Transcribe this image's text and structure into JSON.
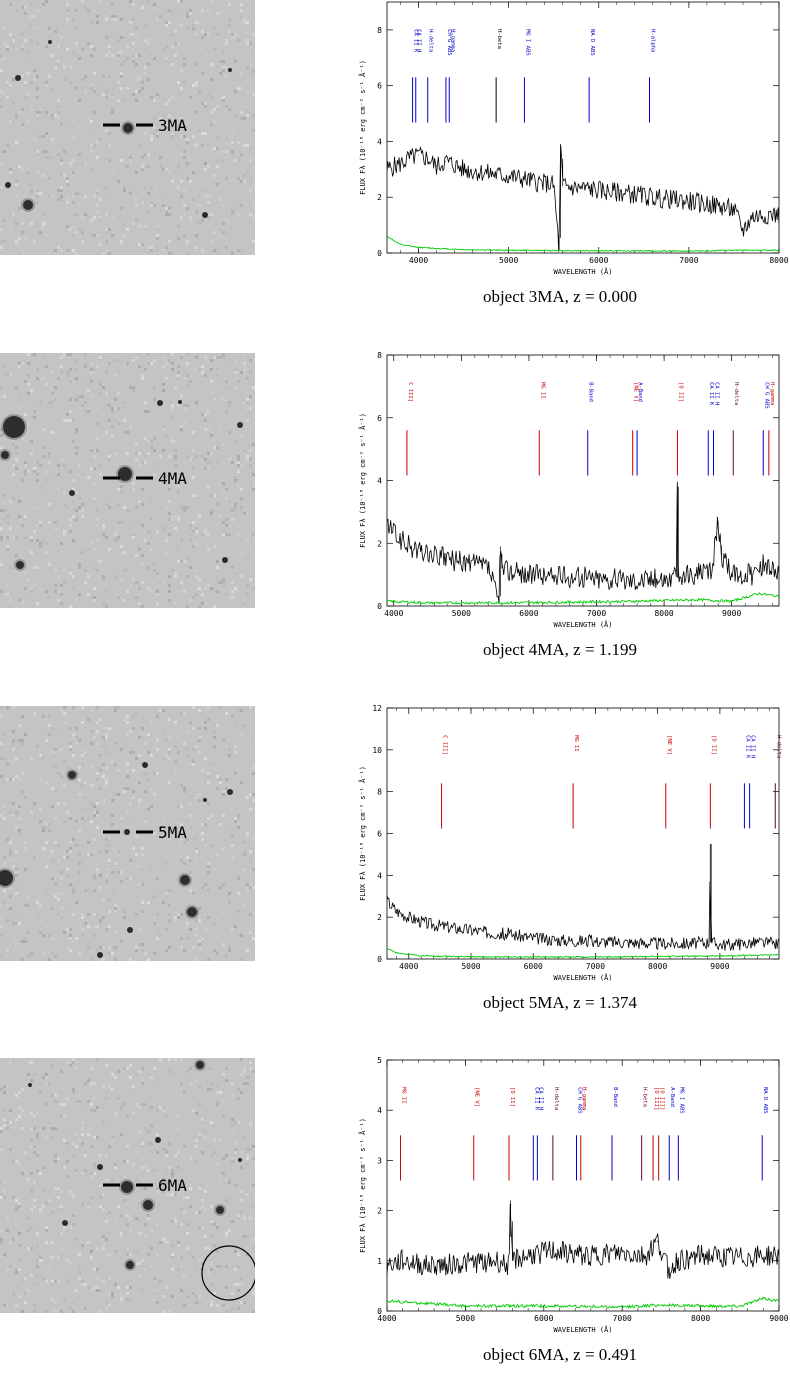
{
  "panels": [
    {
      "id": "3MA",
      "stamp": {
        "label": "3MA",
        "extra_marker": false
      },
      "caption": {
        "prefix": "object",
        "name": "3MA",
        "redshift": "z = 0.000"
      },
      "chart_data": {
        "type": "line",
        "xlabel": "WAVELENGTH (Å)",
        "ylabel": "FLUX Fλ (10⁻¹⁸ erg cm⁻² s⁻¹ Å⁻¹)",
        "xlim": [
          3650,
          8000
        ],
        "ylim": [
          0,
          9
        ],
        "xticks": [
          4000,
          5000,
          6000,
          7000,
          8000
        ],
        "yticks": [
          0,
          2,
          4,
          6,
          8
        ],
        "series": [
          {
            "color": "#000000",
            "x": [
              3650,
              3800,
              3900,
              4000,
              4100,
              4200,
              4300,
              4500,
              4700,
              4900,
              5100,
              5300,
              5500,
              5560,
              5577,
              5600,
              5700,
              5900,
              6100,
              6300,
              6500,
              6700,
              6900,
              7100,
              7300,
              7500,
              7600,
              7700,
              7900,
              8000
            ],
            "y": [
              3.0,
              3.2,
              3.4,
              3.5,
              3.4,
              3.1,
              3.3,
              3.0,
              2.9,
              2.8,
              2.7,
              2.55,
              2.45,
              0.1,
              3.9,
              2.4,
              2.35,
              2.3,
              2.2,
              2.15,
              2.05,
              1.95,
              1.9,
              1.8,
              1.7,
              1.55,
              0.8,
              1.3,
              1.4,
              1.35
            ],
            "noise": 0.35
          },
          {
            "color": "#00cc00",
            "x": [
              3650,
              3800,
              4000,
              4500,
              5000,
              6000,
              7000,
              7600,
              8000
            ],
            "y": [
              0.6,
              0.3,
              0.2,
              0.12,
              0.1,
              0.08,
              0.07,
              0.1,
              0.1
            ],
            "noise": 0.02
          }
        ],
        "lines": [
          {
            "label": "CA II K",
            "x": 3934,
            "color": "#0000cc"
          },
          {
            "label": "CA II H",
            "x": 3969,
            "color": "#0000cc"
          },
          {
            "label": "H-delta",
            "x": 4102,
            "color": "#0000cc"
          },
          {
            "label": "CH G ABS",
            "x": 4304,
            "color": "#0000cc"
          },
          {
            "label": "H-gamma",
            "x": 4341,
            "color": "#0000cc"
          },
          {
            "label": "H-beta",
            "x": 4861,
            "color": "#000000"
          },
          {
            "label": "MG I ABS",
            "x": 5175,
            "color": "#0000cc"
          },
          {
            "label": "NA D ABS",
            "x": 5893,
            "color": "#0000cc"
          },
          {
            "label": "H-alpha",
            "x": 6563,
            "color": "#0000cc"
          }
        ]
      }
    },
    {
      "id": "4MA",
      "stamp": {
        "label": "4MA",
        "extra_marker": false
      },
      "caption": {
        "prefix": "object",
        "name": "4MA",
        "redshift": "z = 1.199"
      },
      "chart_data": {
        "type": "line",
        "xlabel": "WAVELENGTH (Å)",
        "ylabel": "FLUX Fλ (10⁻¹⁸ erg cm⁻² s⁻¹ Å⁻¹)",
        "xlim": [
          3900,
          9700
        ],
        "ylim": [
          0,
          8
        ],
        "xticks": [
          4000,
          5000,
          6000,
          7000,
          8000,
          9000
        ],
        "yticks": [
          0,
          2,
          4,
          6,
          8
        ],
        "series": [
          {
            "color": "#000000",
            "x": [
              3900,
              4100,
              4300,
              4600,
              5000,
              5400,
              5560,
              5577,
              5600,
              6000,
              6500,
              7000,
              7500,
              8000,
              8180,
              8195,
              8210,
              8400,
              8700,
              8800,
              8850,
              9000,
              9300,
              9500,
              9700
            ],
            "y": [
              2.6,
              2.1,
              1.8,
              1.6,
              1.4,
              1.25,
              0.1,
              1.9,
              1.2,
              1.0,
              0.95,
              0.9,
              0.85,
              0.9,
              0.9,
              3.8,
              0.9,
              1.0,
              1.1,
              2.7,
              1.6,
              1.0,
              1.0,
              1.4,
              1.0
            ],
            "noise": 0.35
          },
          {
            "color": "#00cc00",
            "x": [
              3900,
              4500,
              5500,
              6500,
              7500,
              8500,
              9000,
              9400,
              9700
            ],
            "y": [
              0.15,
              0.1,
              0.1,
              0.12,
              0.15,
              0.2,
              0.15,
              0.4,
              0.3
            ],
            "noise": 0.04
          }
        ],
        "lines": [
          {
            "label": "C III]",
            "x": 4195,
            "color": "#cc0000"
          },
          {
            "label": "MG II",
            "x": 6153,
            "color": "#cc0000"
          },
          {
            "label": "B-Band",
            "x": 6870,
            "color": "#0000cc"
          },
          {
            "label": "[NE V]",
            "x": 7535,
            "color": "#cc0000"
          },
          {
            "label": "A-Band",
            "x": 7600,
            "color": "#0000cc"
          },
          {
            "label": "[O II]",
            "x": 8197,
            "color": "#cc0000"
          },
          {
            "label": "CA II K",
            "x": 8653,
            "color": "#0000cc"
          },
          {
            "label": "CA II H",
            "x": 8731,
            "color": "#0000cc"
          },
          {
            "label": "H-delta",
            "x": 9023,
            "color": "#660033"
          },
          {
            "label": "CH G ABS",
            "x": 9467,
            "color": "#0000cc"
          },
          {
            "label": "H-gamma",
            "x": 9550,
            "color": "#cc0000"
          }
        ]
      }
    },
    {
      "id": "5MA",
      "stamp": {
        "label": "5MA",
        "extra_marker": false
      },
      "caption": {
        "prefix": "object",
        "name": "5MA",
        "redshift": "z = 1.374"
      },
      "chart_data": {
        "type": "line",
        "xlabel": "WAVELENGTH (Å)",
        "ylabel": "FLUX Fλ (10⁻¹⁸ erg cm⁻² s⁻¹ Å⁻¹)",
        "xlim": [
          3650,
          9950
        ],
        "ylim": [
          0,
          12
        ],
        "xticks": [
          4000,
          5000,
          6000,
          7000,
          8000,
          9000
        ],
        "yticks": [
          0,
          2,
          4,
          6,
          8,
          10,
          12
        ],
        "series": [
          {
            "color": "#000000",
            "x": [
              3650,
              3800,
              4000,
              4300,
              4700,
              5200,
              5560,
              5577,
              5600,
              6000,
              6500,
              7000,
              7500,
              8000,
              8500,
              8830,
              8845,
              8860,
              9000,
              9300,
              9600,
              9950
            ],
            "y": [
              2.8,
              2.3,
              2.0,
              1.7,
              1.5,
              1.3,
              1.2,
              1.1,
              1.2,
              1.0,
              0.9,
              0.85,
              0.8,
              0.75,
              0.75,
              0.8,
              5.5,
              0.8,
              0.7,
              0.7,
              0.8,
              0.7
            ],
            "noise": 0.3
          },
          {
            "color": "#00cc00",
            "x": [
              3650,
              3800,
              4200,
              5000,
              6000,
              7000,
              8000,
              9000,
              9950
            ],
            "y": [
              0.5,
              0.3,
              0.15,
              0.1,
              0.1,
              0.1,
              0.12,
              0.15,
              0.2
            ],
            "noise": 0.03
          }
        ],
        "lines": [
          {
            "label": "C III]",
            "x": 4527,
            "color": "#cc0000"
          },
          {
            "label": "MG II",
            "x": 6641,
            "color": "#cc0000"
          },
          {
            "label": "[NE V]",
            "x": 8130,
            "color": "#cc0000"
          },
          {
            "label": "[O II]",
            "x": 8847,
            "color": "#cc0000"
          },
          {
            "label": "CA II K",
            "x": 9394,
            "color": "#0000cc"
          },
          {
            "label": "CA II H",
            "x": 9478,
            "color": "#0000cc"
          },
          {
            "label": "H-delta",
            "x": 9890,
            "color": "#660033"
          }
        ]
      }
    },
    {
      "id": "6MA",
      "stamp": {
        "label": "6MA",
        "extra_marker": true
      },
      "caption": {
        "prefix": "object",
        "name": "6MA",
        "redshift": "z = 0.491"
      },
      "chart_data": {
        "type": "line",
        "xlabel": "WAVELENGTH (Å)",
        "ylabel": "FLUX Fλ (10⁻¹⁸ erg cm⁻² s⁻¹ Å⁻¹)",
        "xlim": [
          4000,
          9000
        ],
        "ylim": [
          0,
          5
        ],
        "xticks": [
          4000,
          5000,
          6000,
          7000,
          8000,
          9000
        ],
        "yticks": [
          0,
          1,
          2,
          3,
          4,
          5
        ],
        "series": [
          {
            "color": "#000000",
            "x": [
              4000,
              4200,
              4500,
              5000,
              5400,
              5550,
              5577,
              5600,
              5800,
              6100,
              6500,
              7000,
              7300,
              7450,
              7600,
              7700,
              8000,
              8500,
              8800,
              9000
            ],
            "y": [
              0.9,
              1.0,
              0.9,
              0.95,
              1.0,
              0.9,
              2.2,
              1.0,
              1.1,
              1.2,
              1.1,
              1.15,
              1.1,
              1.4,
              0.8,
              1.0,
              1.1,
              1.05,
              1.1,
              1.1
            ],
            "noise": 0.22
          },
          {
            "color": "#00cc00",
            "x": [
              4000,
              4500,
              5000,
              6000,
              7000,
              7500,
              8000,
              8500,
              8800,
              9000
            ],
            "y": [
              0.2,
              0.15,
              0.1,
              0.1,
              0.08,
              0.12,
              0.1,
              0.1,
              0.25,
              0.2
            ],
            "noise": 0.03
          }
        ],
        "lines": [
          {
            "label": "MG II",
            "x": 4172,
            "color": "#cc0000"
          },
          {
            "label": "[NE V]",
            "x": 5106,
            "color": "#cc0000"
          },
          {
            "label": "[O II]",
            "x": 5556,
            "color": "#cc0000"
          },
          {
            "label": "CA II K",
            "x": 5866,
            "color": "#0000cc"
          },
          {
            "label": "CA II H",
            "x": 5918,
            "color": "#0000cc"
          },
          {
            "label": "H-delta",
            "x": 6116,
            "color": "#660033"
          },
          {
            "label": "CH G ABS",
            "x": 6417,
            "color": "#0000cc"
          },
          {
            "label": "H-gamma",
            "x": 6472,
            "color": "#cc0000"
          },
          {
            "label": "H-beta",
            "x": 7248,
            "color": "#660033"
          },
          {
            "label": "[O III]",
            "x": 7394,
            "color": "#cc0000"
          },
          {
            "label": "[O III]",
            "x": 7465,
            "color": "#cc0000"
          },
          {
            "label": "A-Band",
            "x": 7600,
            "color": "#0000cc"
          },
          {
            "label": "MG I ABS",
            "x": 7716,
            "color": "#0000cc"
          },
          {
            "label": "NA D ABS",
            "x": 8786,
            "color": "#0000cc"
          },
          {
            "label": "B-Band",
            "x": 6870,
            "color": "#0000cc"
          }
        ]
      }
    }
  ]
}
